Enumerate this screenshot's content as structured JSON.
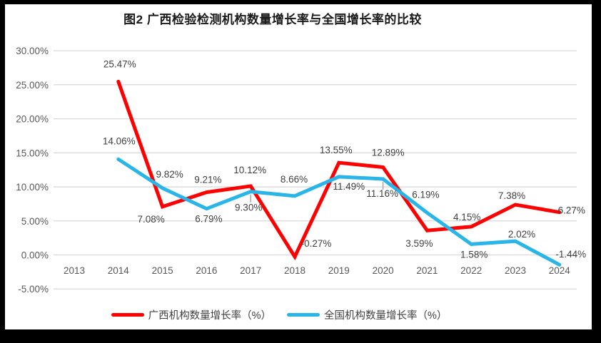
{
  "chart_data": {
    "type": "line",
    "title": "图2 广西检验检测机构数量增长率与全国增长率的比较",
    "categories": [
      "2013",
      "2014",
      "2015",
      "2016",
      "2017",
      "2018",
      "2019",
      "2020",
      "2021",
      "2022",
      "2023",
      "2024"
    ],
    "start_index": 1,
    "series": [
      {
        "name": "广西机构数量增长率（%）",
        "color": "#FE0000",
        "values": [
          25.47,
          7.08,
          9.21,
          10.12,
          -0.27,
          13.55,
          12.89,
          3.59,
          4.15,
          7.38,
          6.27
        ],
        "labels": [
          "25.47%",
          "7.08%",
          "9.21%",
          "10.12%",
          "-0.27%",
          "13.55%",
          "12.89%",
          "3.59%",
          "4.15%",
          "7.38%",
          "6.27%"
        ],
        "label_offsets": [
          [
            2,
            -20
          ],
          [
            -16,
            22
          ],
          [
            2,
            -13
          ],
          [
            -1,
            -18
          ],
          [
            30,
            -14
          ],
          [
            -4,
            -13
          ],
          [
            7,
            -16
          ],
          [
            -11,
            23
          ],
          [
            -6,
            -9
          ],
          [
            -5,
            -8
          ],
          [
            17,
            2
          ]
        ]
      },
      {
        "name": "全国机构数量增长率（%）",
        "color": "#29B5E8",
        "values": [
          14.06,
          9.82,
          6.79,
          9.3,
          8.66,
          11.49,
          11.16,
          6.19,
          1.58,
          2.02,
          -1.44
        ],
        "labels": [
          "14.06%",
          "9.82%",
          "6.79%",
          "9.30%",
          "8.66%",
          "11.49%",
          "11.16%",
          "6.19%",
          "1.58%",
          "2.02%",
          "-1.44%"
        ],
        "label_offsets": [
          [
            1,
            -21
          ],
          [
            10,
            -15
          ],
          [
            3,
            19
          ],
          [
            -3,
            27
          ],
          [
            -1,
            -19
          ],
          [
            14,
            18
          ],
          [
            -1,
            25
          ],
          [
            -2,
            -21
          ],
          [
            4,
            19
          ],
          [
            9,
            -5
          ],
          [
            16,
            -10
          ]
        ]
      }
    ],
    "y_axis": {
      "tick_labels": [
        "30.00%",
        "25.00%",
        "20.00%",
        "15.00%",
        "10.00%",
        "5.00%",
        "0.00%",
        "-5.00%"
      ],
      "tick_values": [
        30,
        25,
        20,
        15,
        10,
        5,
        0,
        -5
      ],
      "min": -5,
      "max": 30
    },
    "leaders": [
      {
        "series": 1,
        "point": 3
      },
      {
        "series": 1,
        "point": 6
      }
    ],
    "grid": true,
    "legend_position": "bottom",
    "colors": {
      "grid": "#D9D9D9",
      "axis_text": "#595959",
      "data_label": "#404040",
      "leader": "#A6A6A6"
    }
  }
}
